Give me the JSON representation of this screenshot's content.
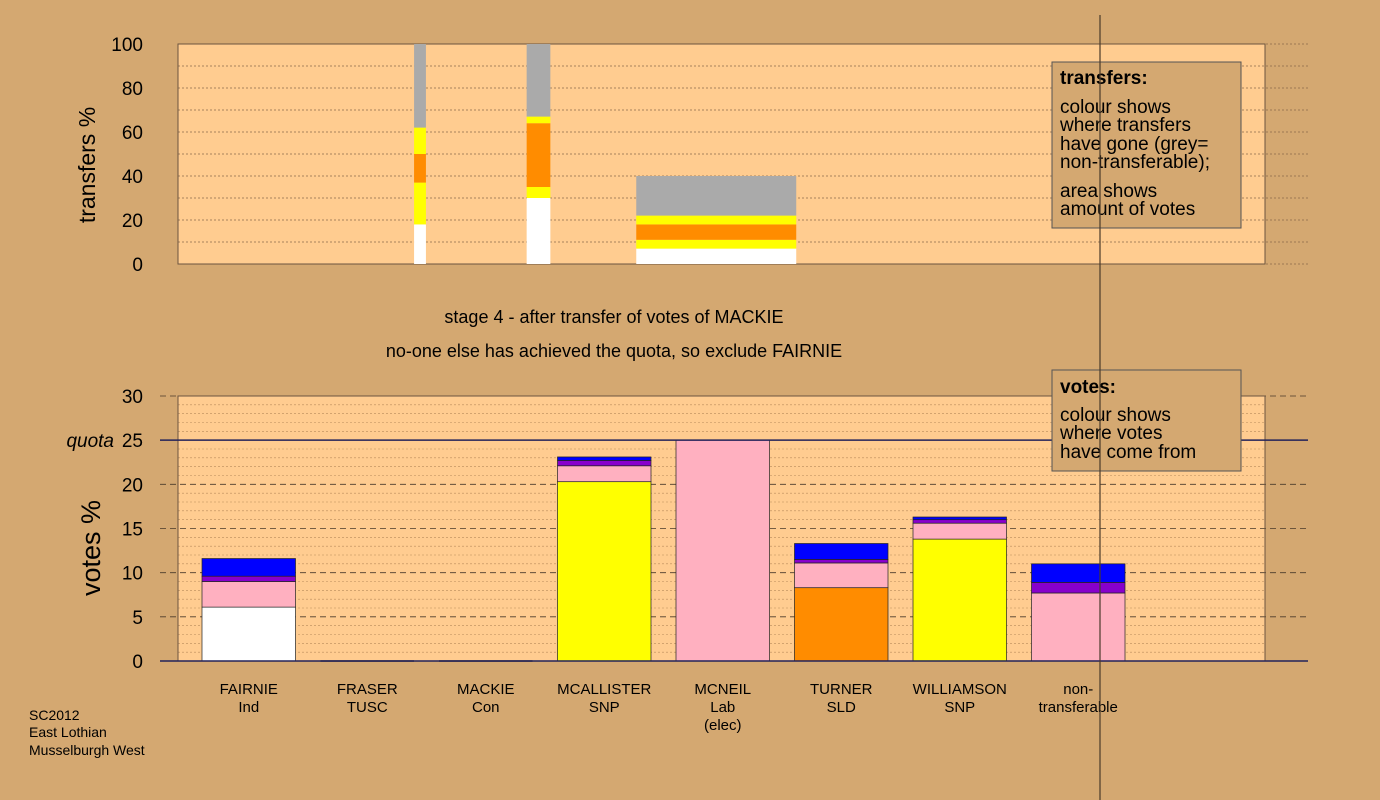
{
  "colors": {
    "background": "#d4a871",
    "plot_fill": "#ffcc90",
    "grey": "#aaaaaa",
    "white": "#ffffff",
    "yellow": "#ffff00",
    "orange": "#ff8c00",
    "pink": "#ffb0c0",
    "purple": "#8800cc",
    "blue": "#0000ff"
  },
  "stage_title": "stage 4 - after transfer of votes of MACKIE",
  "stage_subtitle": "no-one else has achieved the quota, so exclude FAIRNIE",
  "footer": [
    "SC2012",
    "East Lothian",
    "Musselburgh West"
  ],
  "transfers_legend": {
    "title": "transfers:",
    "lines": [
      "colour shows",
      "where transfers",
      "have gone (grey=",
      "non-transferable);",
      "area shows",
      "amount of votes"
    ]
  },
  "votes_legend": {
    "title": "votes:",
    "lines": [
      "colour shows",
      "where votes",
      "have come from"
    ]
  },
  "chart_data": [
    {
      "type": "bar",
      "ylabel": "transfers %",
      "ylim": [
        0,
        100
      ],
      "yticks": [
        0,
        20,
        40,
        60,
        80,
        100
      ],
      "bars": [
        {
          "slot": 1.5,
          "width": 0.1,
          "stack": [
            {
              "color": "white",
              "value": 18
            },
            {
              "color": "yellow",
              "value": 19
            },
            {
              "color": "orange",
              "value": 13
            },
            {
              "color": "yellow",
              "value": 12
            },
            {
              "color": "grey",
              "value": 38
            }
          ]
        },
        {
          "slot": 2.5,
          "width": 0.2,
          "stack": [
            {
              "color": "white",
              "value": 30
            },
            {
              "color": "yellow",
              "value": 5
            },
            {
              "color": "orange",
              "value": 29
            },
            {
              "color": "yellow",
              "value": 3
            },
            {
              "color": "grey",
              "value": 33
            }
          ]
        },
        {
          "slot": 4.0,
          "width": 1.35,
          "stack": [
            {
              "color": "white",
              "value": 7
            },
            {
              "color": "yellow",
              "value": 4
            },
            {
              "color": "orange",
              "value": 7
            },
            {
              "color": "yellow",
              "value": 4
            },
            {
              "color": "grey",
              "value": 18
            }
          ]
        }
      ]
    },
    {
      "type": "bar",
      "ylabel": "votes %",
      "quota_label": "quota",
      "quota": 25,
      "ylim": [
        0,
        30
      ],
      "yticks": [
        0,
        5,
        10,
        15,
        20,
        25,
        30
      ],
      "categories": [
        {
          "lines": [
            "FAIRNIE",
            "Ind"
          ]
        },
        {
          "lines": [
            "FRASER",
            "TUSC"
          ]
        },
        {
          "lines": [
            "MACKIE",
            "Con"
          ]
        },
        {
          "lines": [
            "MCALLISTER",
            "SNP"
          ]
        },
        {
          "lines": [
            "MCNEIL",
            "Lab",
            "(elec)"
          ]
        },
        {
          "lines": [
            "TURNER",
            "SLD"
          ]
        },
        {
          "lines": [
            "WILLIAMSON",
            "SNP"
          ]
        },
        {
          "lines": [
            "non-",
            "transferable"
          ]
        }
      ],
      "series_stacks": [
        [
          {
            "color": "white",
            "value": 6.1
          },
          {
            "color": "pink",
            "value": 2.9
          },
          {
            "color": "purple",
            "value": 0.6
          },
          {
            "color": "blue",
            "value": 2.0
          }
        ],
        [],
        [],
        [
          {
            "color": "yellow",
            "value": 20.3
          },
          {
            "color": "pink",
            "value": 1.8
          },
          {
            "color": "purple",
            "value": 0.6
          },
          {
            "color": "blue",
            "value": 0.4
          }
        ],
        [
          {
            "color": "pink",
            "value": 25.0
          }
        ],
        [
          {
            "color": "orange",
            "value": 8.3
          },
          {
            "color": "pink",
            "value": 2.8
          },
          {
            "color": "purple",
            "value": 0.4
          },
          {
            "color": "blue",
            "value": 1.8
          }
        ],
        [
          {
            "color": "yellow",
            "value": 13.8
          },
          {
            "color": "pink",
            "value": 1.8
          },
          {
            "color": "purple",
            "value": 0.4
          },
          {
            "color": "blue",
            "value": 0.3
          }
        ],
        [
          {
            "color": "pink",
            "value": 7.7
          },
          {
            "color": "purple",
            "value": 1.2
          },
          {
            "color": "blue",
            "value": 2.1
          }
        ]
      ]
    }
  ]
}
